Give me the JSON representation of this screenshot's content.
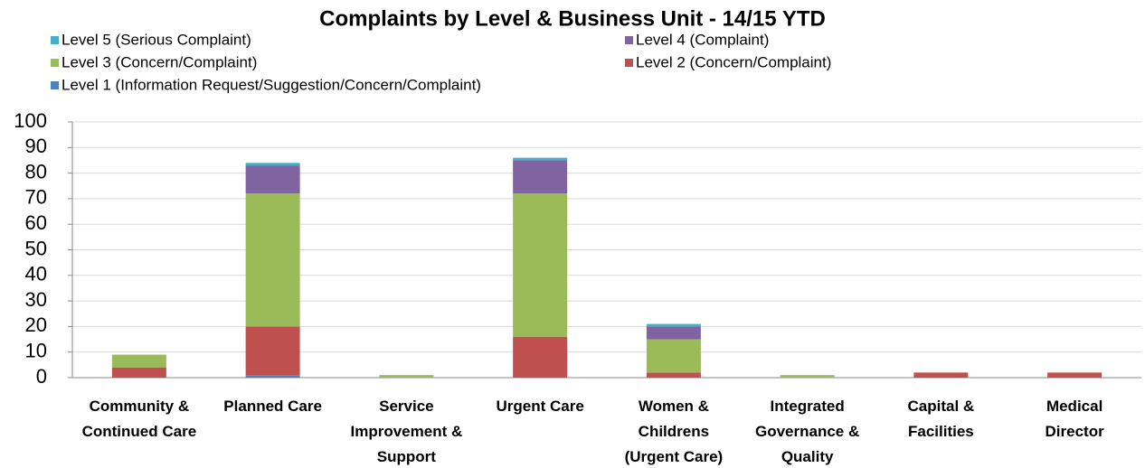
{
  "chart_data": {
    "type": "stacked_bar",
    "title": "Complaints by Level & Business Unit  - 14/15 YTD",
    "categories": [
      "Community & Continued Care",
      "Planned Care",
      "Service Improvement & Support",
      "Urgent Care",
      "Women & Childrens (Urgent Care)",
      "Integrated Governance & Quality",
      "Capital & Facilities",
      "Medical Director"
    ],
    "series": [
      {
        "name": "Level 1 (Information Request/Suggestion/Concern/Complaint)",
        "color": "#4f81bd",
        "values": [
          0,
          1,
          0,
          0,
          0,
          0,
          0,
          0
        ]
      },
      {
        "name": "Level 2 (Concern/Complaint)",
        "color": "#c0504d",
        "values": [
          4,
          19,
          0,
          16,
          2,
          0,
          2,
          2
        ]
      },
      {
        "name": "Level 3 (Concern/Complaint)",
        "color": "#9bbb59",
        "values": [
          5,
          52,
          1,
          56,
          13,
          1,
          0,
          0
        ]
      },
      {
        "name": "Level 4 (Complaint)",
        "color": "#8064a2",
        "values": [
          0,
          11,
          0,
          13,
          5,
          0,
          0,
          0
        ]
      },
      {
        "name": "Level 5 (Serious Complaint)",
        "color": "#4bacc6",
        "values": [
          0,
          1,
          0,
          1,
          1,
          0,
          0,
          0
        ]
      }
    ],
    "ylim": [
      0,
      100
    ],
    "yticks": [
      0,
      10,
      20,
      30,
      40,
      50,
      60,
      70,
      80,
      90,
      100
    ],
    "grid": true
  }
}
